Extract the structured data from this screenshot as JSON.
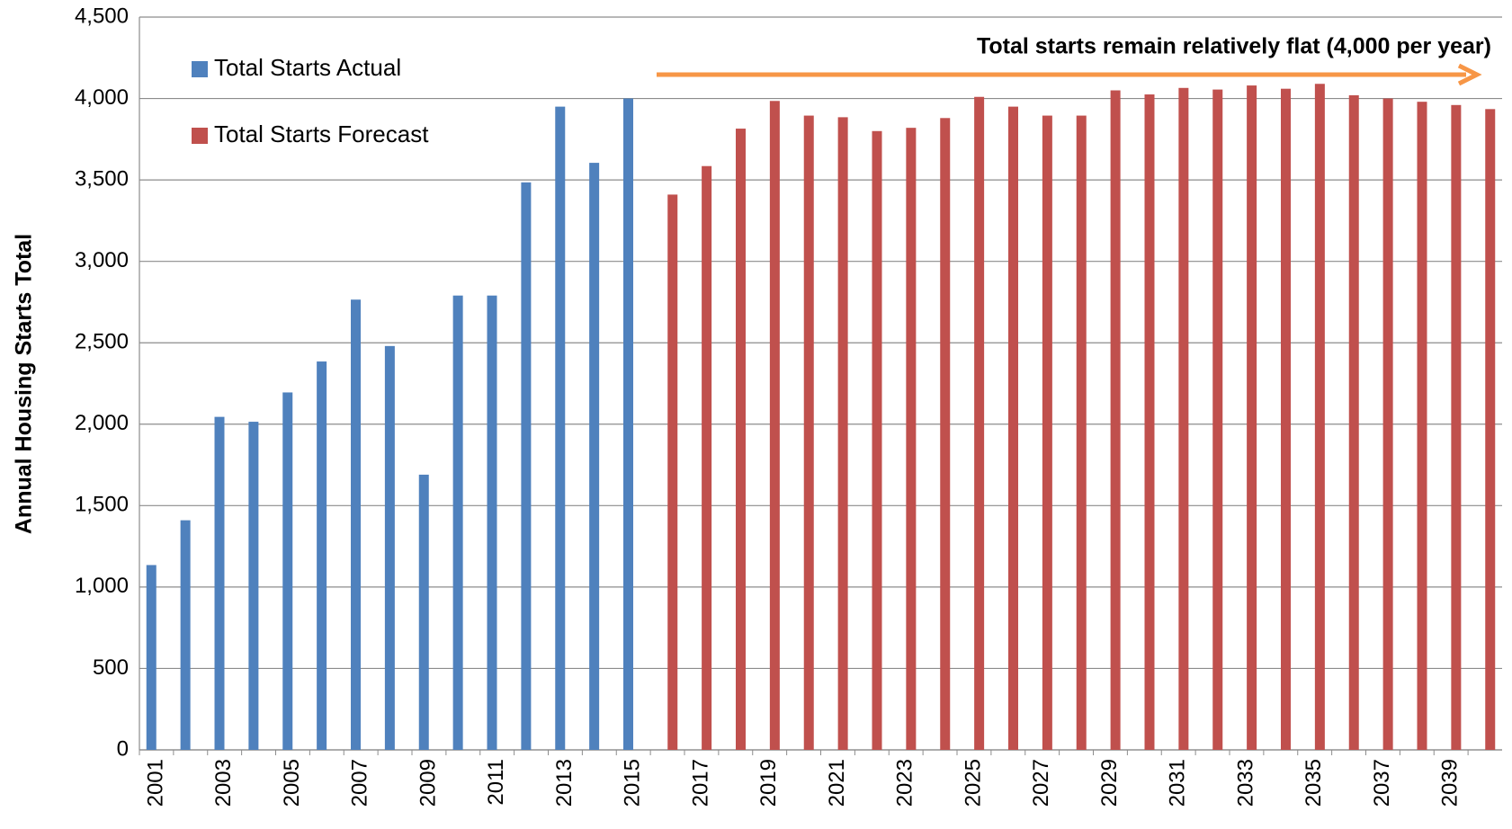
{
  "chart_data": {
    "type": "bar",
    "y_label": "Annual Housing Starts Total",
    "annotation": "Total starts remain relatively flat (4,000 per year)",
    "categories": [
      "2001",
      null,
      "2003",
      null,
      "2005",
      null,
      "2007",
      null,
      "2009",
      null,
      "2011",
      null,
      "2013",
      null,
      "2015",
      null,
      "2017",
      null,
      "2019",
      null,
      "2021",
      null,
      "2023",
      null,
      "2025",
      null,
      "2027",
      null,
      "2029",
      null,
      "2031",
      null,
      "2033",
      null,
      "2035",
      null,
      "2037",
      null,
      "2039",
      null
    ],
    "series": [
      {
        "name": "Total Starts Actual",
        "color": "#4f81bd",
        "values": [
          1135,
          1410,
          2045,
          2015,
          2195,
          2385,
          2765,
          2480,
          1690,
          2790,
          2790,
          3485,
          3950,
          3605,
          4000,
          null,
          null,
          null,
          null,
          null,
          null,
          null,
          null,
          null,
          null,
          null,
          null,
          null,
          null,
          null,
          null,
          null,
          null,
          null,
          null,
          null,
          null,
          null,
          null,
          null
        ]
      },
      {
        "name": "Total Starts Forecast",
        "color": "#c0504d",
        "values": [
          null,
          null,
          null,
          null,
          null,
          null,
          null,
          null,
          null,
          null,
          null,
          null,
          null,
          null,
          null,
          3410,
          3585,
          3815,
          3985,
          3895,
          3885,
          3800,
          3820,
          3880,
          4010,
          3950,
          3895,
          3895,
          4050,
          4025,
          4065,
          4055,
          4080,
          4060,
          4090,
          4020,
          4000,
          3980,
          3960,
          3935
        ]
      }
    ],
    "ylim": [
      0,
      4500
    ],
    "yticks": [
      0,
      500,
      {
        "value": 1000,
        "label": "1,000"
      },
      {
        "value": 1500,
        "label": "1,500"
      },
      {
        "value": 2000,
        "label": "2,000"
      },
      {
        "value": 2500,
        "label": "2,500"
      },
      {
        "value": 3000,
        "label": "3,000"
      },
      {
        "value": 3500,
        "label": "3,500"
      },
      {
        "value": 4000,
        "label": "4,000"
      },
      {
        "value": 4500,
        "label": "4,500"
      }
    ],
    "grid": true,
    "legend": "upper left",
    "annotation_color": "#f79646"
  }
}
